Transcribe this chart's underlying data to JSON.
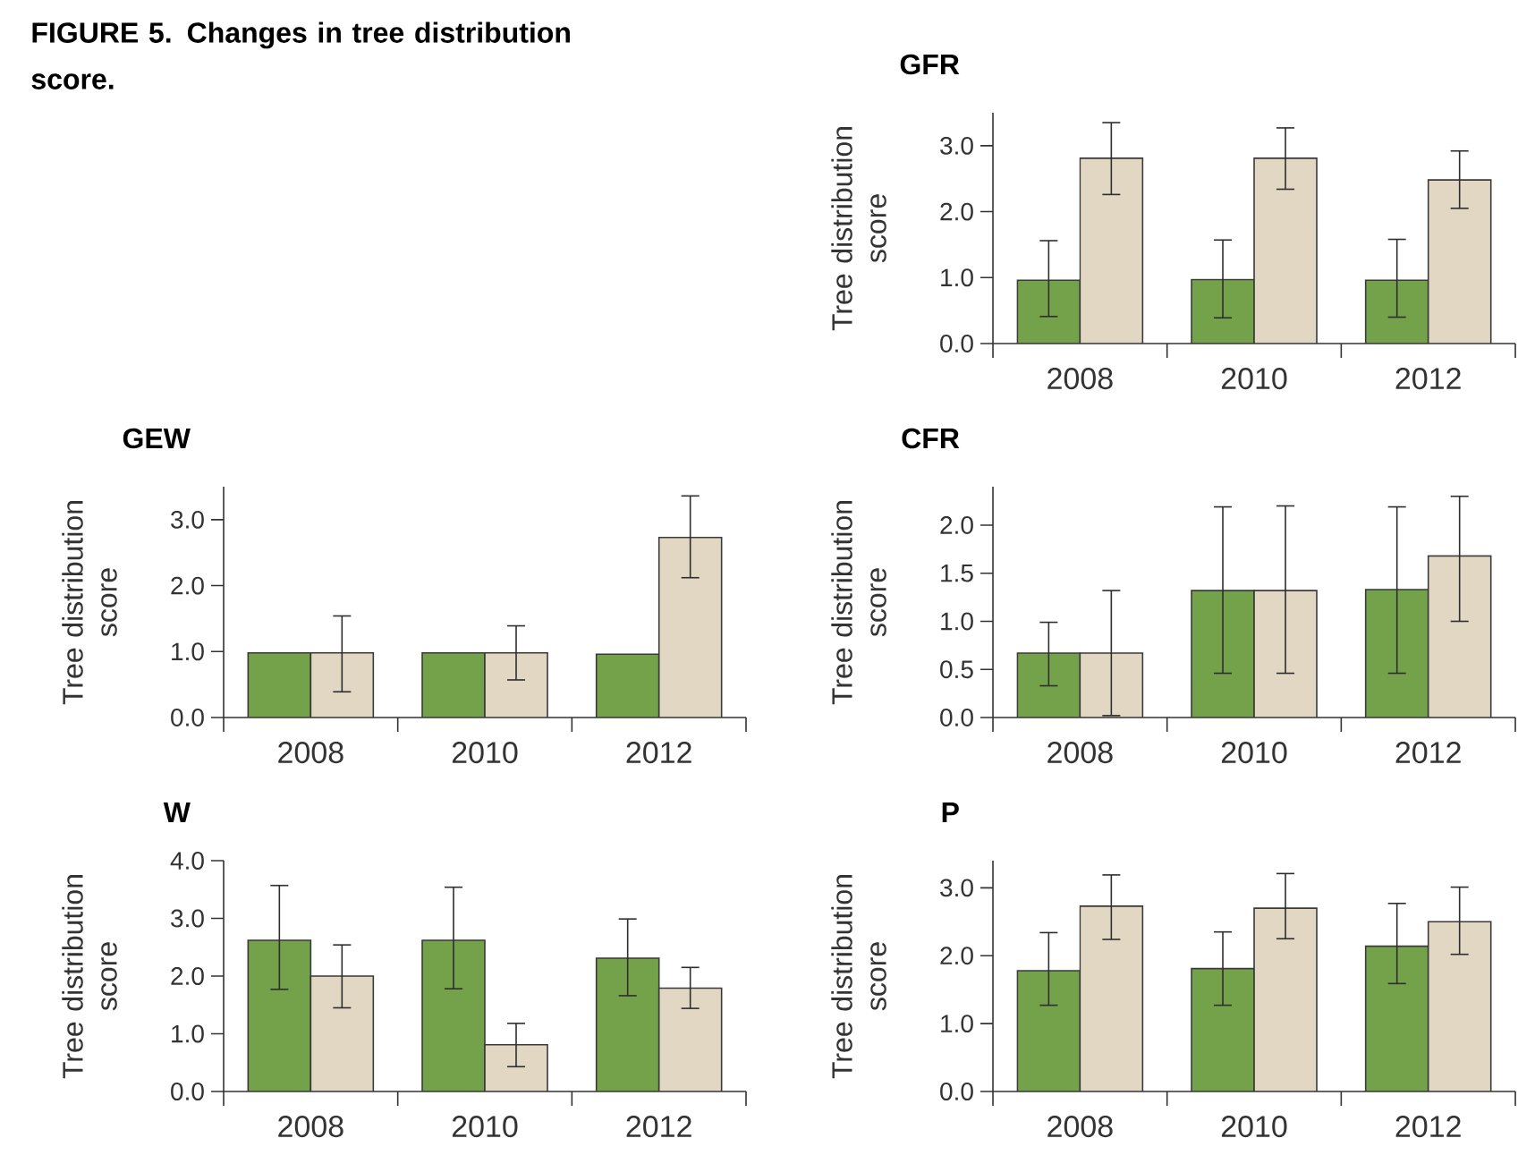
{
  "chart_data": [
    {
      "type": "bar",
      "title": "GFR",
      "ylabel": "Tree distribution score",
      "annotations": [
        "FIGURE 5. Changes in tree distribution score."
      ],
      "categories": [
        "2008",
        "2010",
        "2012"
      ],
      "series": [
        {
          "color": "#74a24b",
          "values": [
            0.96,
            0.97,
            0.96
          ],
          "errors": [
            [
              0.41,
              1.56
            ],
            [
              0.39,
              1.57
            ],
            [
              0.4,
              1.58
            ]
          ]
        },
        {
          "color": "#e2d7c3",
          "values": [
            2.81,
            2.81,
            2.48
          ],
          "errors": [
            [
              2.26,
              3.35
            ],
            [
              2.34,
              3.27
            ],
            [
              2.05,
              2.92
            ]
          ]
        }
      ],
      "ylim": [
        0,
        3.5
      ],
      "yticks": [
        {
          "value": 0,
          "label": "0.0"
        },
        {
          "value": 1,
          "label": "1.0"
        },
        {
          "value": 2,
          "label": "2.0"
        },
        {
          "value": 3,
          "label": "3.0"
        }
      ]
    },
    {
      "type": "bar",
      "title": "GEW",
      "ylabel": "Tree distribution score",
      "categories": [
        "2008",
        "2010",
        "2012"
      ],
      "series": [
        {
          "color": "#74a24b",
          "values": [
            0.98,
            0.98,
            0.96
          ]
        },
        {
          "color": "#e2d7c3",
          "values": [
            0.98,
            0.98,
            2.73
          ],
          "errors": [
            [
              0.39,
              1.54
            ],
            [
              0.57,
              1.39
            ],
            [
              2.12,
              3.36
            ]
          ]
        }
      ],
      "ylim": [
        0,
        3.5
      ],
      "yticks": [
        {
          "value": 0,
          "label": "0.0"
        },
        {
          "value": 1,
          "label": "1.0"
        },
        {
          "value": 2,
          "label": "2.0"
        },
        {
          "value": 3,
          "label": "3.0"
        }
      ]
    },
    {
      "type": "bar",
      "title": "CFR",
      "ylabel": "Tree distribution score",
      "categories": [
        "2008",
        "2010",
        "2012"
      ],
      "series": [
        {
          "color": "#74a24b",
          "values": [
            0.67,
            1.32,
            1.33
          ],
          "errors": [
            [
              0.33,
              0.99
            ],
            [
              0.46,
              2.19
            ],
            [
              0.46,
              2.19
            ]
          ]
        },
        {
          "color": "#e2d7c3",
          "values": [
            0.67,
            1.32,
            1.68
          ],
          "errors": [
            [
              0.02,
              1.32
            ],
            [
              0.46,
              2.2
            ],
            [
              1.0,
              2.3
            ]
          ]
        }
      ],
      "ylim": [
        0,
        2.4
      ],
      "yticks": [
        {
          "value": 0,
          "label": "0.0"
        },
        {
          "value": 0.5,
          "label": "0.5"
        },
        {
          "value": 1,
          "label": "1.0"
        },
        {
          "value": 1.5,
          "label": "1.5"
        },
        {
          "value": 2,
          "label": "2.0"
        }
      ]
    },
    {
      "type": "bar",
      "title": "W",
      "ylabel": "Tree distribution score",
      "categories": [
        "2008",
        "2010",
        "2012"
      ],
      "series": [
        {
          "color": "#74a24b",
          "values": [
            2.62,
            2.62,
            2.31
          ],
          "errors": [
            [
              1.77,
              3.57
            ],
            [
              1.78,
              3.54
            ],
            [
              1.66,
              2.99
            ]
          ]
        },
        {
          "color": "#e2d7c3",
          "values": [
            2.0,
            0.81,
            1.79
          ],
          "errors": [
            [
              1.45,
              2.54
            ],
            [
              0.43,
              1.18
            ],
            [
              1.44,
              2.15
            ]
          ]
        }
      ],
      "ylim": [
        0,
        4
      ],
      "yticks": [
        {
          "value": 0,
          "label": "0.0"
        },
        {
          "value": 1,
          "label": "1.0"
        },
        {
          "value": 2,
          "label": "2.0"
        },
        {
          "value": 3,
          "label": "3.0"
        },
        {
          "value": 4,
          "label": "4.0"
        }
      ]
    },
    {
      "type": "bar",
      "title": "P",
      "ylabel": "Tree distribution score",
      "categories": [
        "2008",
        "2010",
        "2012"
      ],
      "series": [
        {
          "color": "#74a24b",
          "values": [
            1.78,
            1.81,
            2.14
          ],
          "errors": [
            [
              1.27,
              2.34
            ],
            [
              1.27,
              2.35
            ],
            [
              1.59,
              2.77
            ]
          ]
        },
        {
          "color": "#e2d7c3",
          "values": [
            2.73,
            2.7,
            2.5
          ],
          "errors": [
            [
              2.24,
              3.19
            ],
            [
              2.25,
              3.21
            ],
            [
              2.02,
              3.01
            ]
          ]
        }
      ],
      "ylim": [
        0,
        3.4
      ],
      "yticks": [
        {
          "value": 0,
          "label": "0.0"
        },
        {
          "value": 1,
          "label": "1.0"
        },
        {
          "value": 2,
          "label": "2.0"
        },
        {
          "value": 3,
          "label": "3.0"
        }
      ]
    }
  ]
}
